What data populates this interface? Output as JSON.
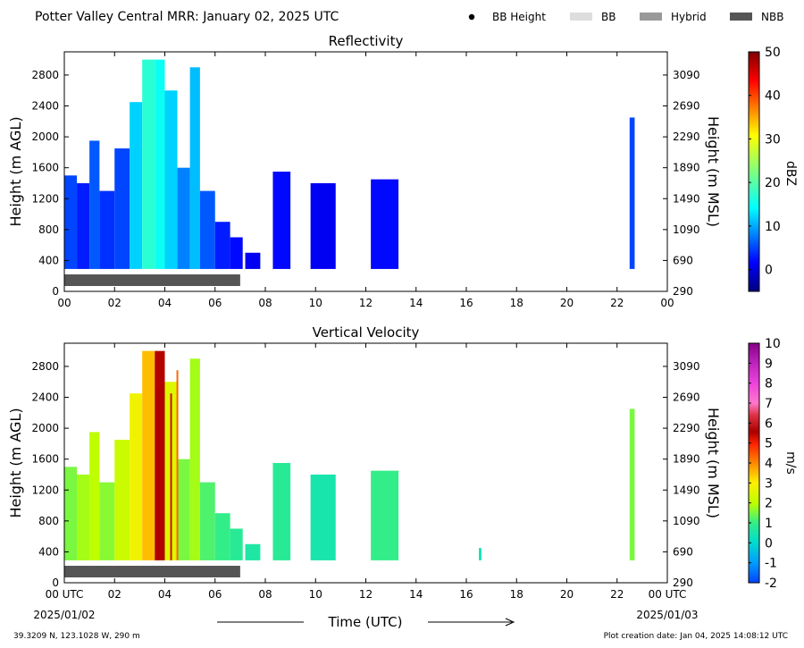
{
  "header": {
    "title": "Potter Valley Central MRR:  January 02, 2025 UTC",
    "legend": [
      {
        "label": "BB Height",
        "kind": "dot",
        "color": "#000000"
      },
      {
        "label": "BB",
        "kind": "rect",
        "color": "#dddddd"
      },
      {
        "label": "Hybrid",
        "kind": "rect",
        "color": "#999999"
      },
      {
        "label": "NBB",
        "kind": "rect",
        "color": "#555555"
      }
    ]
  },
  "chart_data": [
    {
      "type": "heatmap",
      "title": "Reflectivity",
      "ylabel": "Height (m AGL)",
      "ylabel_right": "Height (m MSL)",
      "xlim": [
        0,
        24
      ],
      "ylim": [
        0,
        3100
      ],
      "x_ticks": [
        "00",
        "02",
        "04",
        "06",
        "08",
        "10",
        "12",
        "14",
        "16",
        "18",
        "20",
        "22",
        "00"
      ],
      "y_ticks": [
        0,
        400,
        800,
        1200,
        1600,
        2000,
        2400,
        2800
      ],
      "y_ticks_right": [
        290,
        690,
        1090,
        1490,
        1890,
        2290,
        2690,
        3090
      ],
      "colorbar": {
        "label": "dBZ",
        "min": -5,
        "max": 50,
        "ticks": [
          0,
          10,
          20,
          30,
          40,
          50
        ],
        "colormap": "jet"
      },
      "nbb_bar": {
        "start_hour": 0,
        "end_hour": 7.0,
        "color": "#555555"
      },
      "cells": [
        {
          "t0": 0.0,
          "t1": 0.5,
          "top": 1500,
          "value": 5
        },
        {
          "t0": 0.5,
          "t1": 1.0,
          "top": 1400,
          "value": 3
        },
        {
          "t0": 1.0,
          "t1": 1.4,
          "top": 1950,
          "value": 6
        },
        {
          "t0": 1.4,
          "t1": 2.0,
          "top": 1300,
          "value": 4
        },
        {
          "t0": 2.0,
          "t1": 2.6,
          "top": 1850,
          "value": 5
        },
        {
          "t0": 2.6,
          "t1": 3.1,
          "top": 2450,
          "value": 12
        },
        {
          "t0": 3.1,
          "t1": 3.6,
          "top": 3000,
          "value": 17
        },
        {
          "t0": 3.6,
          "t1": 4.0,
          "top": 3000,
          "value": 15
        },
        {
          "t0": 4.0,
          "t1": 4.5,
          "top": 2600,
          "value": 12
        },
        {
          "t0": 4.5,
          "t1": 5.0,
          "top": 1600,
          "value": 8
        },
        {
          "t0": 5.0,
          "t1": 5.4,
          "top": 2900,
          "value": 11
        },
        {
          "t0": 5.4,
          "t1": 6.0,
          "top": 1300,
          "value": 6
        },
        {
          "t0": 6.0,
          "t1": 6.6,
          "top": 900,
          "value": 3
        },
        {
          "t0": 6.6,
          "t1": 7.1,
          "top": 700,
          "value": 2
        },
        {
          "t0": 7.2,
          "t1": 7.8,
          "top": 500,
          "value": 1
        },
        {
          "t0": 8.3,
          "t1": 9.0,
          "top": 1550,
          "value": 2
        },
        {
          "t0": 9.8,
          "t1": 10.8,
          "top": 1400,
          "value": 1
        },
        {
          "t0": 12.2,
          "t1": 13.3,
          "top": 1450,
          "value": 2
        },
        {
          "t0": 22.5,
          "t1": 22.7,
          "top": 2250,
          "value": 5
        }
      ]
    },
    {
      "type": "heatmap",
      "title": "Vertical Velocity",
      "ylabel": "Height (m AGL)",
      "ylabel_right": "Height (m MSL)",
      "xlabel": "Time (UTC)",
      "xlim": [
        0,
        24
      ],
      "ylim": [
        0,
        3100
      ],
      "x_ticks": [
        "00 UTC",
        "02",
        "04",
        "06",
        "08",
        "10",
        "12",
        "14",
        "16",
        "18",
        "20",
        "22",
        "00 UTC"
      ],
      "x_dates": [
        "2025/01/02",
        "2025/01/03"
      ],
      "y_ticks": [
        0,
        400,
        800,
        1200,
        1600,
        2000,
        2400,
        2800
      ],
      "y_ticks_right": [
        290,
        690,
        1090,
        1490,
        1890,
        2290,
        2690,
        3090
      ],
      "colorbar": {
        "label": "m/s",
        "min": -2,
        "max": 10,
        "ticks": [
          -2,
          -1,
          0,
          1,
          2,
          3,
          4,
          5,
          6,
          7,
          8,
          9,
          10
        ],
        "colormap": "velocity"
      },
      "nbb_bar": {
        "start_hour": 0,
        "end_hour": 7.0,
        "color": "#555555"
      },
      "cells": [
        {
          "t0": 0.0,
          "t1": 0.5,
          "top": 1500,
          "value": 1.5
        },
        {
          "t0": 0.5,
          "t1": 1.0,
          "top": 1400,
          "value": 1.8
        },
        {
          "t0": 1.0,
          "t1": 1.4,
          "top": 1950,
          "value": 2.0
        },
        {
          "t0": 1.4,
          "t1": 2.0,
          "top": 1300,
          "value": 1.6
        },
        {
          "t0": 2.0,
          "t1": 2.6,
          "top": 1850,
          "value": 2.2
        },
        {
          "t0": 2.6,
          "t1": 3.1,
          "top": 2450,
          "value": 2.8
        },
        {
          "t0": 3.1,
          "t1": 3.6,
          "top": 3000,
          "value": 3.5
        },
        {
          "t0": 3.6,
          "t1": 4.0,
          "top": 3000,
          "value": 5.5
        },
        {
          "t0": 4.0,
          "t1": 4.5,
          "top": 2600,
          "value": 2.5
        },
        {
          "t0": 4.5,
          "t1": 5.0,
          "top": 1600,
          "value": 1.5
        },
        {
          "t0": 5.0,
          "t1": 5.4,
          "top": 2900,
          "value": 1.8
        },
        {
          "t0": 5.4,
          "t1": 6.0,
          "top": 1300,
          "value": 1.2
        },
        {
          "t0": 6.0,
          "t1": 6.6,
          "top": 900,
          "value": 1.0
        },
        {
          "t0": 6.6,
          "t1": 7.1,
          "top": 700,
          "value": 0.8
        },
        {
          "t0": 7.2,
          "t1": 7.8,
          "top": 500,
          "value": 0.6
        },
        {
          "t0": 8.3,
          "t1": 9.0,
          "top": 1550,
          "value": 0.8
        },
        {
          "t0": 9.8,
          "t1": 10.8,
          "top": 1400,
          "value": 0.5
        },
        {
          "t0": 12.2,
          "t1": 13.3,
          "top": 1450,
          "value": 1.0
        },
        {
          "t0": 16.5,
          "t1": 16.6,
          "top": 450,
          "value": 0.3
        },
        {
          "t0": 22.5,
          "t1": 22.7,
          "top": 2250,
          "value": 1.5
        }
      ],
      "lines": [
        {
          "t": 3.75,
          "top": 2500,
          "color": "#aa0000"
        },
        {
          "t": 4.25,
          "top": 2450,
          "color": "#cc1100"
        },
        {
          "t": 4.5,
          "top": 2750,
          "color": "#ff6600"
        }
      ]
    }
  ],
  "footer": {
    "location": "39.3209 N, 123.1028 W, 290 m",
    "created": "Plot creation date: Jan 04, 2025 14:08:12 UTC"
  }
}
